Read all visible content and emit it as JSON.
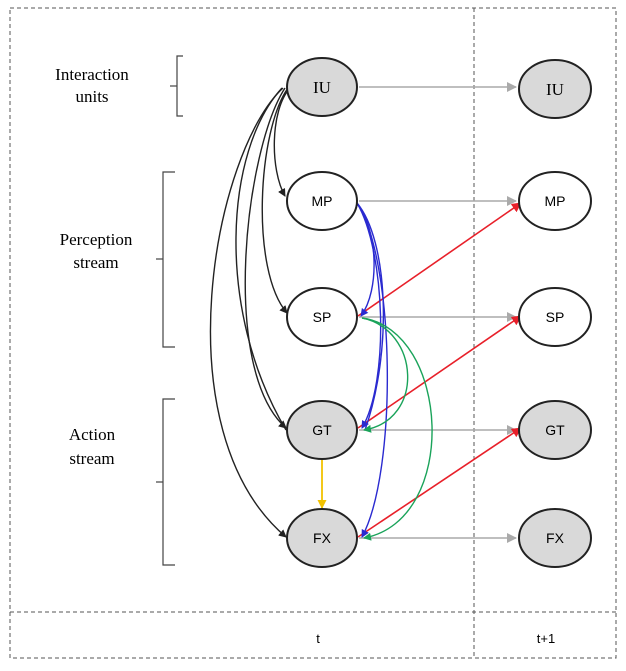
{
  "group_labels": {
    "interaction": [
      "Interaction",
      "units"
    ],
    "perception": [
      "Perception",
      "stream"
    ],
    "action": [
      "Action",
      "stream"
    ]
  },
  "nodes_t": {
    "iu": "IU",
    "mp": "MP",
    "sp": "SP",
    "gt": "GT",
    "fx": "FX"
  },
  "nodes_t1": {
    "iu": "IU",
    "mp": "MP",
    "sp": "SP",
    "gt": "GT",
    "fx": "FX"
  },
  "time_labels": {
    "t": "t",
    "t1": "t+1"
  },
  "colors": {
    "black_edge": "#222222",
    "gray_edge": "#aaaaaa",
    "red_edge": "#e8202a",
    "blue_edge": "#2a2ad0",
    "green_edge": "#1aa35a",
    "yellow_edge": "#f2c200",
    "shaded_node": "#d9d9d9"
  }
}
